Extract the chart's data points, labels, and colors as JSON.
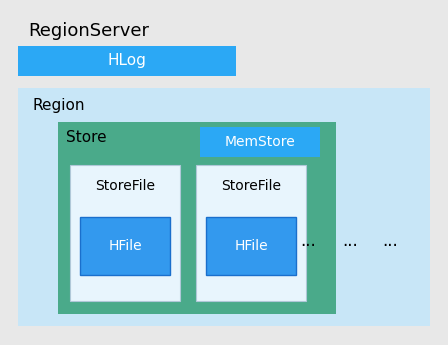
{
  "bg_color": "#e8e8e8",
  "regionserver_label": "RegionServer",
  "hlog_label": "HLog",
  "hlog_color": "#2ba8f5",
  "hlog_text_color": "#ffffff",
  "region_label": "Region",
  "region_color": "#c8e6f7",
  "store_label": "Store",
  "store_color": "#4aaa8a",
  "memstore_label": "MemStore",
  "memstore_color": "#2ba8f5",
  "memstore_text_color": "#ffffff",
  "storefile_label": "StoreFile",
  "storefile_color": "#e8f5fd",
  "hfile_label": "HFile",
  "hfile_color": "#3399ee",
  "hfile_text_color": "#ffffff",
  "dots": "...",
  "rs_fontsize": 13,
  "label_fontsize": 11,
  "small_fontsize": 10,
  "dots_fontsize": 12
}
